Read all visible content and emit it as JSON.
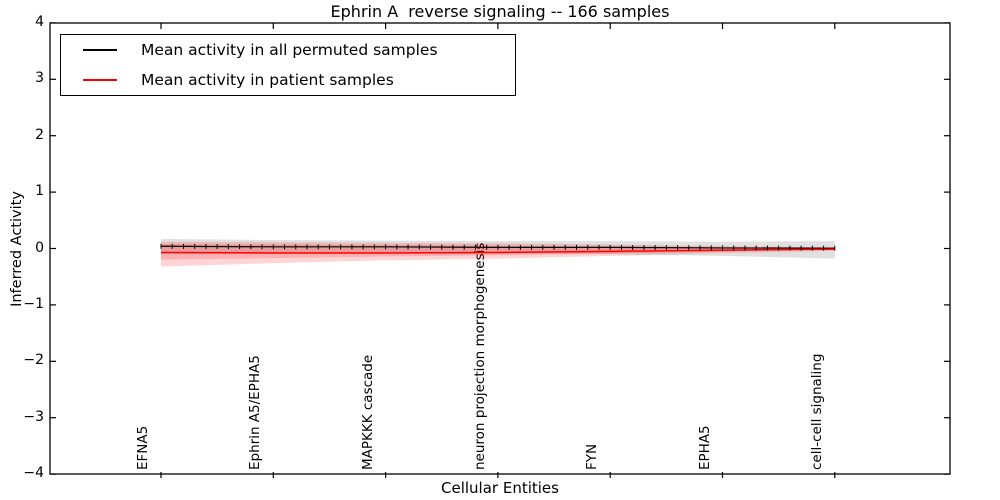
{
  "figure": {
    "background": "#ffffff"
  },
  "axes": {
    "yticks": [
      "4",
      "3",
      "2",
      "1",
      "0",
      "−1",
      "−2",
      "−3",
      "−4"
    ],
    "ticks_direction": "in"
  },
  "legend": {
    "position": "upper left",
    "entries": [
      {
        "label": "Mean activity in all permuted samples",
        "color": "#000000"
      },
      {
        "label": "Mean activity in patient samples",
        "color": "#ff0000"
      }
    ]
  },
  "colors": {
    "axis": "#000000",
    "permuted_line": "#000000",
    "patient_line": "#ff0000",
    "permuted_band": "rgba(0,0,0,0.12)",
    "patient_band": "rgba(255,0,0,0.17)",
    "background": "#ffffff"
  },
  "chart_data": {
    "type": "line",
    "title": "Ephrin A  reverse signaling -- 166 samples",
    "xlabel": "Cellular Entities",
    "ylabel": "Inferred Activity",
    "ylim": [
      -4,
      4
    ],
    "yticks": [
      4,
      3,
      2,
      1,
      0,
      -1,
      -2,
      -3,
      -4
    ],
    "grid": false,
    "legend_position": "upper left",
    "n_points": 61,
    "categories": [
      "EFNA5",
      "Ephrin A5/EPHA5",
      "MAPKKK cascade",
      "neuron projection morphogenesis",
      "FYN",
      "EPHA5",
      "cell-cell signaling"
    ],
    "series": [
      {
        "name": "Mean activity in all permuted samples",
        "color": "#000000",
        "values": [
          0.04,
          0.03,
          0.03,
          0.02,
          0.02,
          0.01,
          0.005
        ],
        "band_upper": [
          0.17,
          0.15,
          0.14,
          0.13,
          0.13,
          0.12,
          0.13
        ],
        "band_lower": [
          -0.09,
          -0.08,
          -0.08,
          -0.08,
          -0.1,
          -0.13,
          -0.18
        ]
      },
      {
        "name": "Mean activity in patient samples",
        "color": "#ff0000",
        "values": [
          -0.07,
          -0.08,
          -0.08,
          -0.07,
          -0.05,
          -0.03,
          -0.01
        ],
        "band_upper": [
          0.12,
          0.11,
          0.1,
          0.09,
          0.07,
          0.04,
          0.02
        ],
        "band_lower": [
          -0.32,
          -0.26,
          -0.21,
          -0.18,
          -0.13,
          -0.08,
          -0.04
        ],
        "band_inner_upper": [
          0.08,
          0.07,
          0.06,
          0.05,
          0.04,
          0.02,
          0.01
        ],
        "band_inner_lower": [
          -0.2,
          -0.17,
          -0.14,
          -0.12,
          -0.09,
          -0.05,
          -0.02
        ]
      }
    ]
  }
}
